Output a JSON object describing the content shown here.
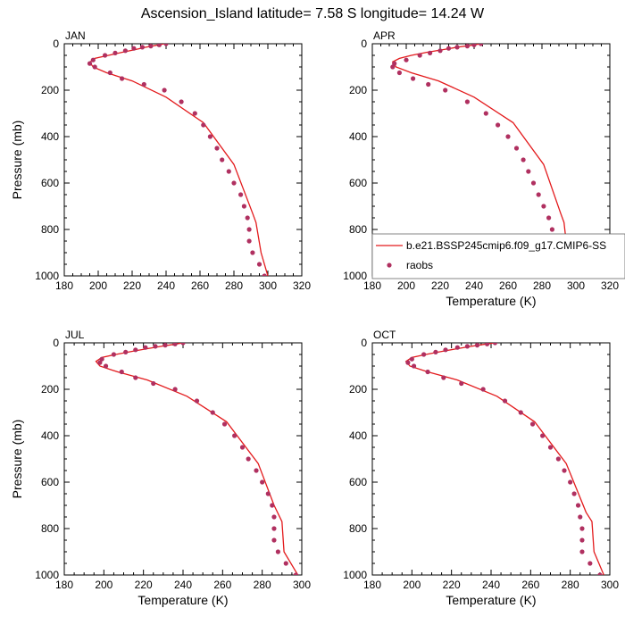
{
  "figure": {
    "title": "Ascension_Island  latitude= 7.58 S longitude= 14.24 W"
  },
  "colors": {
    "model_line": "#e31a1c",
    "raobs_marker": "#b03060",
    "axes": "#000000"
  },
  "legend": {
    "model_label": "b.e21.BSSP245cmip6.f09_g17.CMIP6-SS",
    "obs_label": "raobs",
    "placement": "APR panel, lower right"
  },
  "chart_data": [
    {
      "type": "line",
      "panel": "JAN",
      "xlabel": "",
      "ylabel": "Pressure (mb)",
      "xlim": [
        180,
        320
      ],
      "ylim": [
        1000,
        0
      ],
      "xticks": [
        "180",
        "200",
        "220",
        "240",
        "260",
        "280",
        "300",
        "320"
      ],
      "yticks": [
        "0",
        "200",
        "400",
        "600",
        "800",
        "1000"
      ],
      "series": [
        {
          "name": "b.e21.BSSP245cmip6.f09_g17.CMIP6-SS",
          "kind": "line",
          "x": [
            239,
            234,
            228,
            222,
            214,
            206,
            198,
            195,
            197,
            205,
            220,
            240,
            262,
            280,
            291,
            293,
            296,
            300
          ],
          "y": [
            0,
            7,
            15,
            25,
            37,
            50,
            63,
            80,
            100,
            125,
            160,
            230,
            340,
            520,
            730,
            770,
            900,
            1000
          ]
        },
        {
          "name": "raobs",
          "kind": "marker",
          "x": [
            240,
            236,
            231,
            226,
            221,
            216,
            210,
            204,
            197,
            195,
            198,
            207,
            214,
            227,
            239,
            249,
            257,
            262,
            266,
            270,
            273,
            277,
            280,
            284,
            286,
            288,
            289,
            289,
            291,
            295,
            298
          ],
          "y": [
            0,
            5,
            10,
            15,
            20,
            30,
            40,
            50,
            70,
            85,
            100,
            125,
            150,
            175,
            200,
            250,
            300,
            350,
            400,
            450,
            500,
            550,
            600,
            650,
            700,
            750,
            800,
            850,
            900,
            950,
            1000
          ]
        }
      ]
    },
    {
      "type": "line",
      "panel": "APR",
      "xlabel": "Temperature (K)",
      "ylabel": "",
      "xlim": [
        180,
        320
      ],
      "ylim": [
        1000,
        0
      ],
      "xticks": [
        "180",
        "200",
        "220",
        "240",
        "260",
        "280",
        "300",
        "320"
      ],
      "yticks": [
        "0",
        "200",
        "400",
        "600",
        "800",
        "1000"
      ],
      "series": [
        {
          "name": "b.e21.BSSP245cmip6.f09_g17.CMIP6-SS",
          "kind": "line",
          "x": [
            244,
            238,
            230,
            222,
            212,
            203,
            196,
            192,
            194,
            203,
            219,
            240,
            263,
            281,
            291,
            293,
            295,
            300
          ],
          "y": [
            0,
            7,
            15,
            25,
            37,
            50,
            63,
            78,
            100,
            125,
            160,
            230,
            340,
            520,
            730,
            770,
            900,
            1000
          ]
        },
        {
          "name": "raobs",
          "kind": "marker",
          "x": [
            244,
            240,
            236,
            230,
            225,
            220,
            214,
            208,
            200,
            193,
            192,
            196,
            204,
            213,
            223,
            236,
            247,
            254,
            260,
            265,
            269,
            272,
            275,
            278,
            281,
            284,
            286,
            287,
            289,
            293,
            299
          ],
          "y": [
            0,
            5,
            10,
            15,
            20,
            30,
            40,
            50,
            70,
            85,
            100,
            125,
            150,
            175,
            200,
            250,
            300,
            350,
            400,
            450,
            500,
            550,
            600,
            650,
            700,
            750,
            800,
            850,
            900,
            950,
            1000
          ]
        }
      ]
    },
    {
      "type": "line",
      "panel": "JUL",
      "xlabel": "Temperature (K)",
      "ylabel": "Pressure (mb)",
      "xlim": [
        180,
        300
      ],
      "ylim": [
        1000,
        0
      ],
      "xticks": [
        "180",
        "200",
        "220",
        "240",
        "260",
        "280",
        "300"
      ],
      "yticks": [
        "0",
        "200",
        "400",
        "600",
        "800",
        "1000"
      ],
      "series": [
        {
          "name": "b.e21.BSSP245cmip6.f09_g17.CMIP6-SS",
          "kind": "line",
          "x": [
            240,
            235,
            229,
            222,
            214,
            206,
            199,
            196,
            198,
            207,
            222,
            242,
            262,
            278,
            286,
            290,
            291,
            298
          ],
          "y": [
            0,
            7,
            15,
            25,
            37,
            50,
            63,
            80,
            100,
            125,
            160,
            230,
            340,
            520,
            700,
            770,
            900,
            1000
          ]
        },
        {
          "name": "raobs",
          "kind": "marker",
          "x": [
            240,
            236,
            231,
            226,
            221,
            216,
            211,
            205,
            199,
            198,
            201,
            209,
            216,
            225,
            236,
            247,
            255,
            261,
            266,
            270,
            273,
            277,
            280,
            283,
            285,
            286,
            286,
            286,
            288,
            292,
            297
          ],
          "y": [
            0,
            5,
            10,
            15,
            20,
            30,
            40,
            50,
            70,
            85,
            100,
            125,
            150,
            175,
            200,
            250,
            300,
            350,
            400,
            450,
            500,
            550,
            600,
            650,
            700,
            750,
            800,
            850,
            900,
            950,
            1000
          ]
        }
      ]
    },
    {
      "type": "line",
      "panel": "OCT",
      "xlabel": "Temperature (K)",
      "ylabel": "",
      "xlim": [
        180,
        300
      ],
      "ylim": [
        1000,
        0
      ],
      "xticks": [
        "180",
        "200",
        "220",
        "240",
        "260",
        "280",
        "300"
      ],
      "yticks": [
        "0",
        "200",
        "400",
        "600",
        "800",
        "1000"
      ],
      "series": [
        {
          "name": "b.e21.BSSP245cmip6.f09_g17.CMIP6-SS",
          "kind": "line",
          "x": [
            242,
            236,
            230,
            223,
            215,
            207,
            200,
            197,
            199,
            208,
            223,
            243,
            262,
            278,
            288,
            291,
            292,
            297
          ],
          "y": [
            0,
            7,
            15,
            25,
            37,
            50,
            63,
            80,
            100,
            125,
            160,
            230,
            340,
            520,
            730,
            770,
            900,
            1000
          ]
        },
        {
          "name": "raobs",
          "kind": "marker",
          "x": [
            242,
            238,
            233,
            228,
            223,
            217,
            212,
            206,
            200,
            198,
            201,
            208,
            216,
            225,
            236,
            247,
            255,
            261,
            266,
            270,
            274,
            277,
            280,
            282,
            284,
            285,
            286,
            286,
            286,
            290,
            295
          ],
          "y": [
            0,
            5,
            10,
            15,
            20,
            30,
            40,
            50,
            70,
            85,
            100,
            125,
            150,
            175,
            200,
            250,
            300,
            350,
            400,
            450,
            500,
            550,
            600,
            650,
            700,
            750,
            800,
            850,
            900,
            950,
            1000
          ]
        }
      ]
    }
  ]
}
